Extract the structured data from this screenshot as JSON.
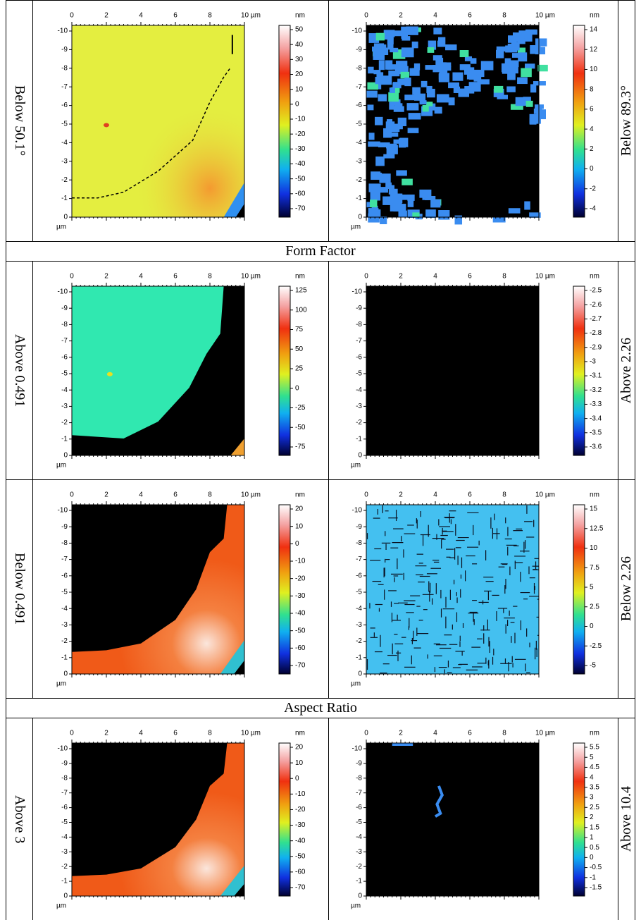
{
  "blocks": [
    {
      "left_label": "Below 50.1°",
      "right_label": "Below 89.3°",
      "panels": [
        {
          "x_ticks": [
            "0",
            "2",
            "4",
            "6",
            "8",
            "10 µm"
          ],
          "y_ticks": [
            "-10",
            "-9",
            "-8",
            "-7",
            "-6",
            "-5",
            "-4",
            "-3",
            "-2",
            "-1",
            "0"
          ],
          "x_unit": "µm",
          "colorbar_unit": "nm",
          "colorbar_ticks": [
            "50",
            "40",
            "30",
            "20",
            "10",
            "0",
            "-10",
            "-20",
            "-30",
            "-40",
            "-50",
            "-60",
            "-70"
          ]
        },
        {
          "x_ticks": [
            "0",
            "2",
            "4",
            "6",
            "8",
            "10 µm"
          ],
          "y_ticks": [
            "-10",
            "-9",
            "-8",
            "-7",
            "-6",
            "-5",
            "-4",
            "-3",
            "-2",
            "-1",
            "0"
          ],
          "x_unit": "µm",
          "colorbar_unit": "nm",
          "colorbar_ticks": [
            "14",
            "12",
            "10",
            "8",
            "6",
            "4",
            "2",
            "0",
            "-2",
            "-4"
          ]
        }
      ]
    },
    {
      "heading": "Form Factor"
    },
    {
      "left_label": "Above 0.491",
      "right_label": "Above 2.26",
      "panels": [
        {
          "x_ticks": [
            "0",
            "2",
            "4",
            "6",
            "8",
            "10 µm"
          ],
          "y_ticks": [
            "-10",
            "-9",
            "-8",
            "-7",
            "-6",
            "-5",
            "-4",
            "-3",
            "-2",
            "-1",
            "0"
          ],
          "x_unit": "µm",
          "colorbar_unit": "nm",
          "colorbar_ticks": [
            "125",
            "100",
            "75",
            "50",
            "25",
            "0",
            "-25",
            "-50",
            "-75"
          ]
        },
        {
          "x_ticks": [
            "0",
            "2",
            "4",
            "6",
            "8",
            "10 µm"
          ],
          "y_ticks": [
            "-10",
            "-9",
            "-8",
            "-7",
            "-6",
            "-5",
            "-4",
            "-3",
            "-2",
            "-1",
            "0"
          ],
          "x_unit": "µm",
          "colorbar_unit": "nm",
          "colorbar_ticks": [
            "-2.5",
            "-2.6",
            "-2.7",
            "-2.8",
            "-2.9",
            "-3",
            "-3.1",
            "-3.2",
            "-3.3",
            "-3.4",
            "-3.5",
            "-3.6"
          ]
        }
      ]
    },
    {
      "left_label": "Below 0.491",
      "right_label": "Below 2.26",
      "panels": [
        {
          "x_ticks": [
            "0",
            "2",
            "4",
            "6",
            "8",
            "10 µm"
          ],
          "y_ticks": [
            "-10",
            "-9",
            "-8",
            "-7",
            "-6",
            "-5",
            "-4",
            "-3",
            "-2",
            "-1",
            "0"
          ],
          "x_unit": "µm",
          "colorbar_unit": "nm",
          "colorbar_ticks": [
            "20",
            "10",
            "0",
            "-10",
            "-20",
            "-30",
            "-40",
            "-50",
            "-60",
            "-70"
          ]
        },
        {
          "x_ticks": [
            "0",
            "2",
            "4",
            "6",
            "8",
            "10 µm"
          ],
          "y_ticks": [
            "-10",
            "-9",
            "-8",
            "-7",
            "-6",
            "-5",
            "-4",
            "-3",
            "-2",
            "-1",
            "0"
          ],
          "x_unit": "µm",
          "colorbar_unit": "nm",
          "colorbar_ticks": [
            "15",
            "12.5",
            "10",
            "7.5",
            "5",
            "2.5",
            "0",
            "-2.5",
            "-5"
          ]
        }
      ]
    },
    {
      "heading": "Aspect Ratio"
    },
    {
      "left_label": "Above 3",
      "right_label": "Above 10.4",
      "panels": [
        {
          "x_ticks": [
            "0",
            "2",
            "4",
            "6",
            "8",
            "10 µm"
          ],
          "y_ticks": [
            "-10",
            "-9",
            "-8",
            "-7",
            "-6",
            "-5",
            "-4",
            "-3",
            "-2",
            "-1",
            "0"
          ],
          "x_unit": "µm",
          "colorbar_unit": "nm",
          "colorbar_ticks": [
            "20",
            "10",
            "0",
            "-10",
            "-20",
            "-30",
            "-40",
            "-50",
            "-60",
            "-70"
          ]
        },
        {
          "x_ticks": [
            "0",
            "2",
            "4",
            "6",
            "8",
            "10 µm"
          ],
          "y_ticks": [
            "-10",
            "-9",
            "-8",
            "-7",
            "-6",
            "-5",
            "-4",
            "-3",
            "-2",
            "-1",
            "0"
          ],
          "x_unit": "µm",
          "colorbar_unit": "nm",
          "colorbar_ticks": [
            "5.5",
            "5",
            "4.5",
            "4",
            "3.5",
            "3",
            "2.5",
            "2",
            "1.5",
            "1",
            "0.5",
            "0",
            "-0.5",
            "-1",
            "-1.5"
          ]
        }
      ]
    }
  ]
}
